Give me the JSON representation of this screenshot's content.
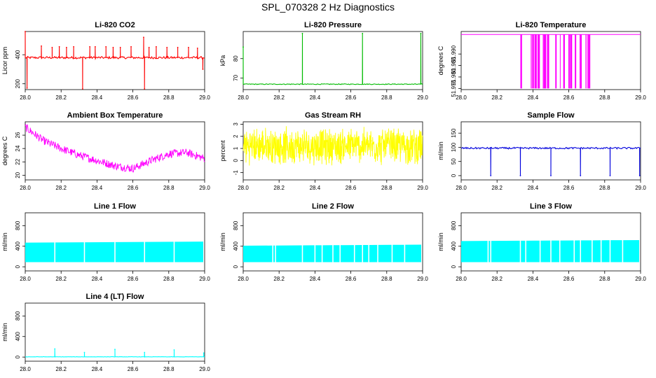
{
  "title": "SPL_070328  2 Hz Diagnostics",
  "chart_data": [
    {
      "type": "line",
      "title": "Li-820 CO2",
      "ylabel": "Licor ppm",
      "color": "#ff0000",
      "xlim": [
        28.0,
        29.0
      ],
      "ylim": [
        160,
        560
      ],
      "xticks": [
        "28.0",
        "28.2",
        "28.4",
        "28.6",
        "28.8",
        "29.0"
      ],
      "yticks": [
        {
          "value": 200,
          "label": "200"
        },
        {
          "value": 400,
          "label": "400"
        }
      ],
      "series": [
        {
          "name": "CO2",
          "baseline": 380,
          "noise": 8,
          "events": [
            {
              "x": 28.0,
              "y": 560
            },
            {
              "x": 28.01,
              "y": 170
            },
            {
              "x": 28.09,
              "y": 460
            },
            {
              "x": 28.15,
              "y": 450
            },
            {
              "x": 28.19,
              "y": 455
            },
            {
              "x": 28.23,
              "y": 450
            },
            {
              "x": 28.27,
              "y": 455
            },
            {
              "x": 28.32,
              "y": 165
            },
            {
              "x": 28.36,
              "y": 455
            },
            {
              "x": 28.39,
              "y": 455
            },
            {
              "x": 28.45,
              "y": 455
            },
            {
              "x": 28.49,
              "y": 450
            },
            {
              "x": 28.53,
              "y": 450
            },
            {
              "x": 28.59,
              "y": 455
            },
            {
              "x": 28.66,
              "y": 520
            },
            {
              "x": 28.665,
              "y": 165
            },
            {
              "x": 28.69,
              "y": 450
            },
            {
              "x": 28.73,
              "y": 455
            },
            {
              "x": 28.79,
              "y": 450
            },
            {
              "x": 28.85,
              "y": 450
            },
            {
              "x": 28.91,
              "y": 450
            },
            {
              "x": 28.96,
              "y": 445
            },
            {
              "x": 28.99,
              "y": 300
            }
          ]
        }
      ]
    },
    {
      "type": "line",
      "title": "Li-820 Pressure",
      "ylabel": "kPa",
      "color": "#00bb00",
      "xlim": [
        28.0,
        29.0
      ],
      "ylim": [
        64,
        94
      ],
      "xticks": [
        "28.0",
        "28.2",
        "28.4",
        "28.6",
        "28.8",
        "29.0"
      ],
      "yticks": [
        {
          "value": 70,
          "label": "70"
        },
        {
          "value": 80,
          "label": "80"
        }
      ],
      "series": [
        {
          "name": "Pressure",
          "baseline": 66.8,
          "noise": 0.2,
          "events": [
            {
              "x": 28.0,
              "y": 86
            },
            {
              "x": 28.33,
              "y": 93
            },
            {
              "x": 28.665,
              "y": 93
            },
            {
              "x": 28.99,
              "y": 93
            }
          ]
        }
      ]
    },
    {
      "type": "line",
      "title": "Li-820 Temperature",
      "ylabel": "degrees C",
      "color": "#ff00ff",
      "xlim": [
        28.0,
        29.0
      ],
      "ylim": [
        51.9745,
        51.9998
      ],
      "xticks": [
        "28.0",
        "28.2",
        "28.4",
        "28.6",
        "28.8",
        "29.0"
      ],
      "yticks": [
        {
          "value": 51.975,
          "label": "51.975"
        },
        {
          "value": 51.98,
          "label": "51.980"
        },
        {
          "value": 51.985,
          "label": "51.985"
        },
        {
          "value": 51.99,
          "label": "51.990"
        }
      ],
      "series": [
        {
          "name": "Temperature",
          "high": 51.9985,
          "low": 51.975,
          "toggle_range": [
            28.33,
            28.73
          ]
        }
      ]
    },
    {
      "type": "line",
      "title": "Ambient Box Temperature",
      "ylabel": "degrees C",
      "color": "#ff00ff",
      "xlim": [
        28.0,
        29.0
      ],
      "ylim": [
        19.3,
        28.0
      ],
      "xticks": [
        "28.0",
        "28.2",
        "28.4",
        "28.6",
        "28.8",
        "29.0"
      ],
      "yticks": [
        {
          "value": 20,
          "label": "20"
        },
        {
          "value": 22,
          "label": "22"
        },
        {
          "value": 24,
          "label": "24"
        },
        {
          "value": 26,
          "label": "26"
        }
      ],
      "series": [
        {
          "name": "Ambient",
          "x": [
            28.0,
            28.1,
            28.2,
            28.3,
            28.4,
            28.5,
            28.6,
            28.7,
            28.8,
            28.9,
            29.0
          ],
          "y": [
            27.2,
            25.2,
            24.0,
            23.0,
            22.2,
            21.4,
            21.0,
            22.2,
            23.2,
            23.4,
            22.5
          ],
          "band": 1.2
        }
      ]
    },
    {
      "type": "line",
      "title": "Gas Stream RH",
      "ylabel": "percent",
      "color": "#ffff00",
      "xlim": [
        28.0,
        29.0
      ],
      "ylim": [
        -1.6,
        3.2
      ],
      "xticks": [
        "28.0",
        "28.2",
        "28.4",
        "28.6",
        "28.8",
        "29.0"
      ],
      "yticks": [
        {
          "value": -1,
          "label": "-1"
        },
        {
          "value": 0,
          "label": "0"
        },
        {
          "value": 1,
          "label": "1"
        },
        {
          "value": 2,
          "label": "2"
        },
        {
          "value": 3,
          "label": "3"
        }
      ],
      "series": [
        {
          "name": "RH",
          "center": 1.2,
          "amplitude": 1.4
        }
      ]
    },
    {
      "type": "line",
      "title": "Sample Flow",
      "ylabel": "ml/min",
      "color": "#0000dd",
      "xlim": [
        28.0,
        29.0
      ],
      "ylim": [
        -15,
        190
      ],
      "xticks": [
        "28.0",
        "28.2",
        "28.4",
        "28.6",
        "28.8",
        "29.0"
      ],
      "yticks": [
        {
          "value": 0,
          "label": "0"
        },
        {
          "value": 50,
          "label": "50"
        },
        {
          "value": 100,
          "label": "100"
        },
        {
          "value": 150,
          "label": "150"
        }
      ],
      "series": [
        {
          "name": "Sample Flow",
          "baseline": 97,
          "noise": 3,
          "events": [
            {
              "x": 28.165,
              "y": 0
            },
            {
              "x": 28.33,
              "y": 0
            },
            {
              "x": 28.5,
              "y": 0
            },
            {
              "x": 28.665,
              "y": 0
            },
            {
              "x": 28.83,
              "y": 0
            },
            {
              "x": 28.995,
              "y": 0
            }
          ]
        }
      ]
    },
    {
      "type": "area",
      "title": "Line 1 Flow",
      "ylabel": "ml/min",
      "color": "#00ffff",
      "xlim": [
        28.0,
        29.0
      ],
      "ylim": [
        -80,
        1050
      ],
      "xticks": [
        "28.0",
        "28.2",
        "28.4",
        "28.6",
        "28.8",
        "29.0"
      ],
      "yticks": [
        {
          "value": 0,
          "label": "0"
        },
        {
          "value": 400,
          "label": "400"
        },
        {
          "value": 800,
          "label": "800"
        }
      ],
      "series": [
        {
          "name": "Line 1",
          "low": 90,
          "high": 470,
          "high_end": 490,
          "gaps": [
            28.165,
            28.33,
            28.5,
            28.665,
            28.83,
            28.995
          ]
        }
      ]
    },
    {
      "type": "area",
      "title": "Line 2 Flow",
      "ylabel": "ml/min",
      "color": "#00ffff",
      "xlim": [
        28.0,
        29.0
      ],
      "ylim": [
        -80,
        1050
      ],
      "xticks": [
        "28.0",
        "28.2",
        "28.4",
        "28.6",
        "28.8",
        "29.0"
      ],
      "yticks": [
        {
          "value": 0,
          "label": "0"
        },
        {
          "value": 400,
          "label": "400"
        },
        {
          "value": 800,
          "label": "800"
        }
      ],
      "series": [
        {
          "name": "Line 2",
          "low": 90,
          "high": 410,
          "high_end": 430,
          "gaps": [
            28.165,
            28.18,
            28.33,
            28.4,
            28.44,
            28.5,
            28.54,
            28.62,
            28.665,
            28.7,
            28.75,
            28.83,
            28.9,
            28.995
          ]
        }
      ]
    },
    {
      "type": "area",
      "title": "Line 3 Flow",
      "ylabel": "ml/min",
      "color": "#00ffff",
      "xlim": [
        28.0,
        29.0
      ],
      "ylim": [
        -80,
        1050
      ],
      "xticks": [
        "28.0",
        "28.2",
        "28.4",
        "28.6",
        "28.8",
        "29.0"
      ],
      "yticks": [
        {
          "value": 0,
          "label": "0"
        },
        {
          "value": 400,
          "label": "400"
        },
        {
          "value": 800,
          "label": "800"
        }
      ],
      "series": [
        {
          "name": "Line 3",
          "low": 90,
          "high": 500,
          "high_end": 520,
          "gaps": [
            28.15,
            28.165,
            28.33,
            28.36,
            28.44,
            28.5,
            28.55,
            28.63,
            28.665,
            28.73,
            28.78,
            28.83,
            28.9,
            28.995
          ]
        }
      ]
    },
    {
      "type": "line",
      "title": "Line 4 (LT) Flow",
      "ylabel": "ml/min",
      "color": "#00ffff",
      "xlim": [
        28.0,
        29.0
      ],
      "ylim": [
        -80,
        1050
      ],
      "xticks": [
        "28.0",
        "28.2",
        "28.4",
        "28.6",
        "28.8",
        "29.0"
      ],
      "yticks": [
        {
          "value": 0,
          "label": "0"
        },
        {
          "value": 400,
          "label": "400"
        },
        {
          "value": 800,
          "label": "800"
        }
      ],
      "series": [
        {
          "name": "Line 4",
          "baseline": 5,
          "noise": 2,
          "events": [
            {
              "x": 28.165,
              "y": 160
            },
            {
              "x": 28.33,
              "y": 90
            },
            {
              "x": 28.5,
              "y": 150
            },
            {
              "x": 28.665,
              "y": 90
            },
            {
              "x": 28.83,
              "y": 140
            },
            {
              "x": 28.995,
              "y": 80
            }
          ]
        }
      ]
    }
  ]
}
